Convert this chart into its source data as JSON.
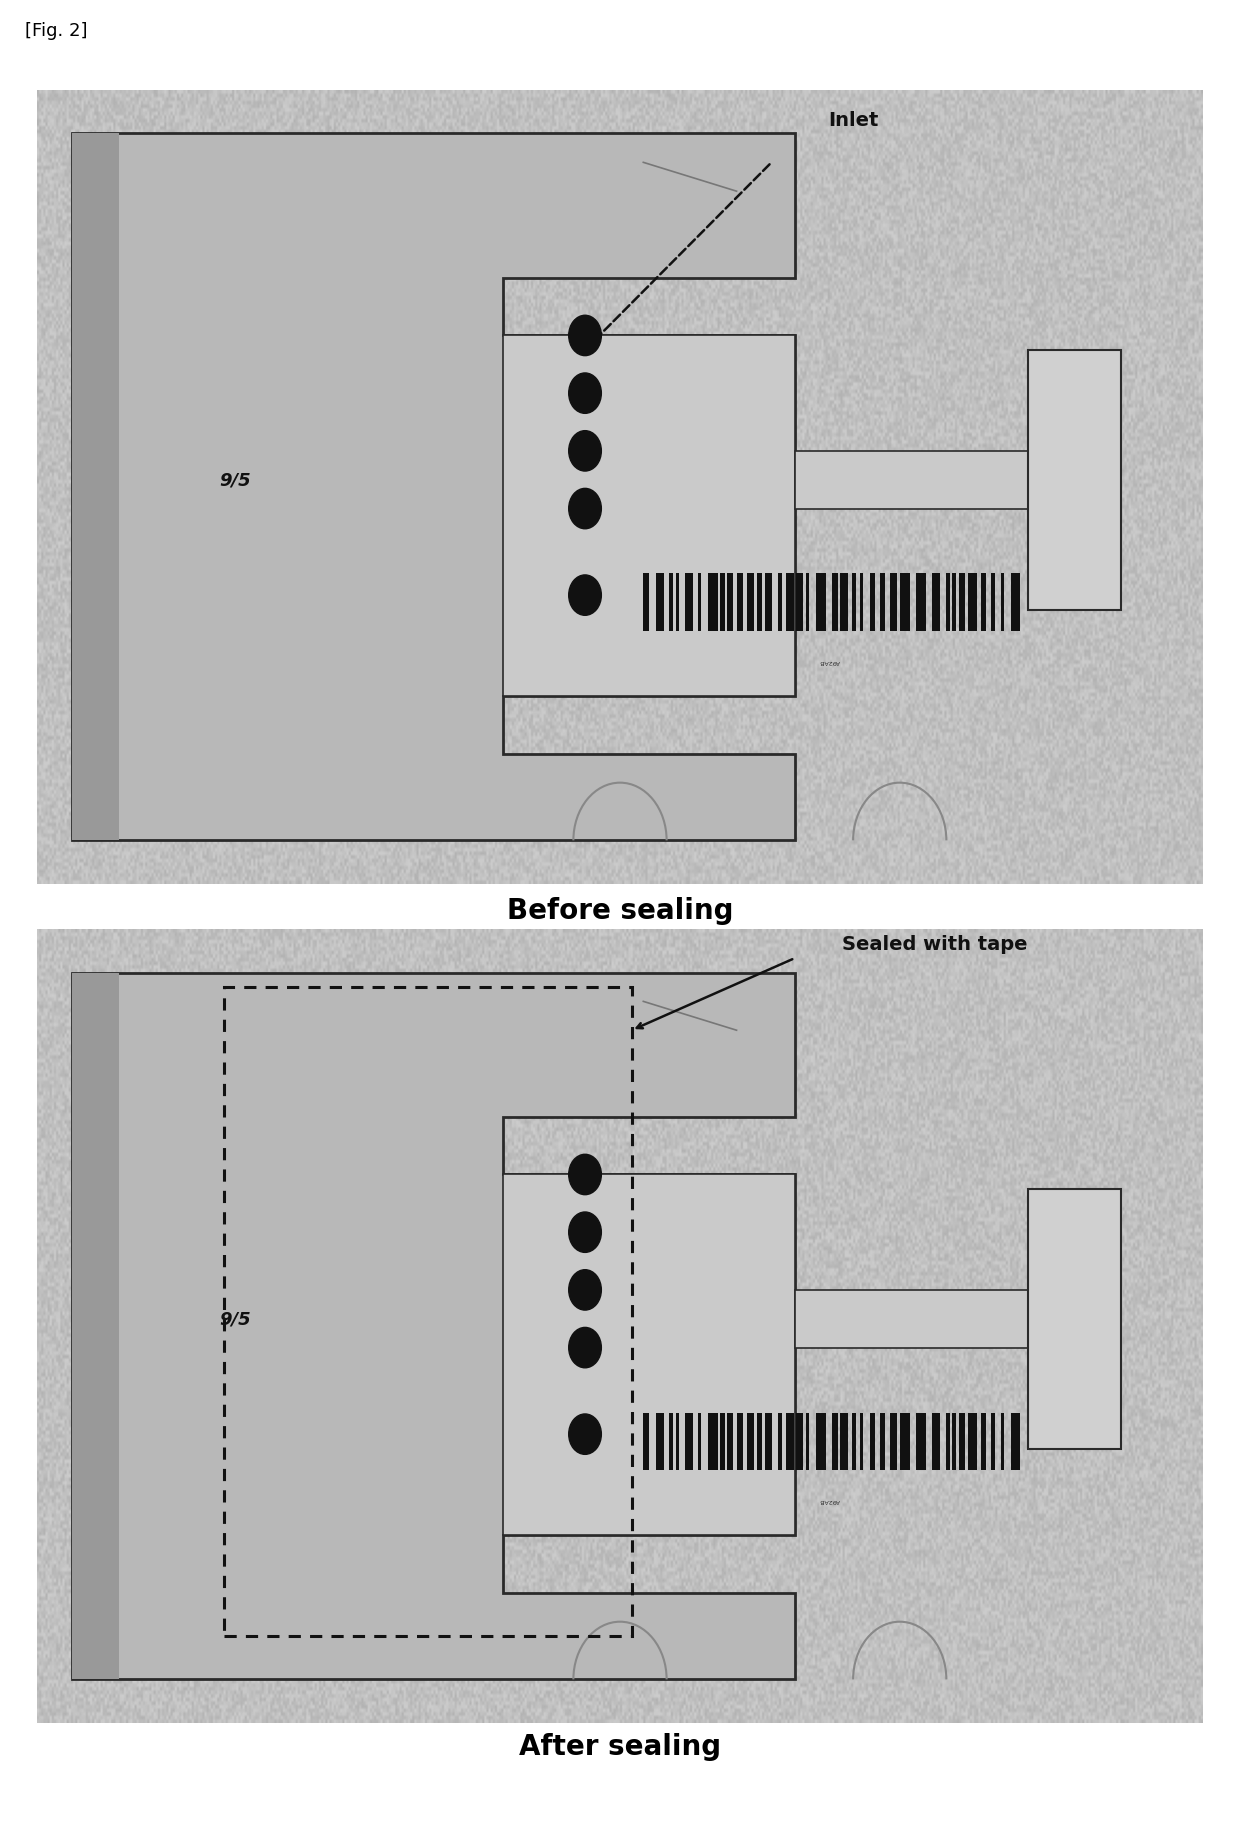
{
  "fig_label": "[Fig. 2]",
  "top_caption": "Before sealing",
  "bottom_caption": "After sealing",
  "top_annotation": "Inlet",
  "bottom_annotation": "Sealed with tape",
  "figure_bg": "#ffffff",
  "caption_fontsize": 20,
  "caption_fontweight": "bold",
  "fig_label_fontsize": 13,
  "annotation_fontsize": 14,
  "annotation_fontweight": "bold",
  "chip_body_color": "#b8b8b8",
  "chip_edge_color": "#2a2a2a",
  "chip_inner_color": "#cacaca",
  "chip_step_color": "#aaaaaa",
  "bg_noise_low": 0.7,
  "bg_noise_high": 0.8,
  "barcode_color": "#111111",
  "dot_color": "#111111",
  "text_color": "#111111",
  "dashed_rect_color": "#111111",
  "annotation_arrow_color": "#111111"
}
